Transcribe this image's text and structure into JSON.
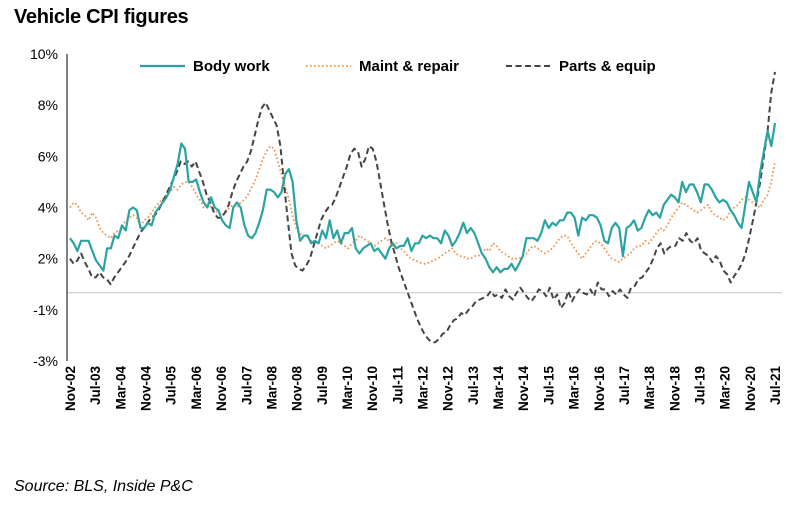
{
  "chart_data": {
    "type": "line",
    "title": "Vehicle CPI figures",
    "source": "Source: BLS, Inside P&C",
    "y_tick_labels": [
      "10%",
      "8%",
      "6%",
      "4%",
      "2%",
      "-1%",
      "-3%"
    ],
    "x_tick_labels": [
      "Nov-02",
      "Jul-03",
      "Mar-04",
      "Nov-04",
      "Jul-05",
      "Mar-06",
      "Nov-06",
      "Jul-07",
      "Mar-08",
      "Nov-08",
      "Jul-09",
      "Mar-10",
      "Nov-10",
      "Jul-11",
      "Mar-12",
      "Nov-12",
      "Jul-13",
      "Mar-14",
      "Nov-14",
      "Jul-15",
      "Mar-16",
      "Nov-16",
      "Jul-17",
      "Mar-18",
      "Nov-18",
      "Jul-19",
      "Mar-20",
      "Nov-20",
      "Jul-21"
    ],
    "legend_position": "top",
    "grid": false,
    "series": [
      {
        "name": "Body work",
        "color": "#2ba3a3",
        "style": "solid",
        "values": [
          2.8,
          2.6,
          2.3,
          2.7,
          2.7,
          2.7,
          2.3,
          1.9,
          1.6,
          1.3,
          2.4,
          2.4,
          2.9,
          2.8,
          3.3,
          3.1,
          3.9,
          4.0,
          3.9,
          3.2,
          3.2,
          3.4,
          3.3,
          3.8,
          4.0,
          4.2,
          4.4,
          4.7,
          5.2,
          5.7,
          6.5,
          6.3,
          5.0,
          5.0,
          5.1,
          4.6,
          4.2,
          4.0,
          4.4,
          4.0,
          3.9,
          3.5,
          3.3,
          3.2,
          4.0,
          4.2,
          4.0,
          3.3,
          2.9,
          2.8,
          3.0,
          3.4,
          3.9,
          4.7,
          4.7,
          4.6,
          4.4,
          4.6,
          5.3,
          5.5,
          5.0,
          3.5,
          2.7,
          2.9,
          2.9,
          2.6,
          2.7,
          2.6,
          3.1,
          2.8,
          3.5,
          2.8,
          3.1,
          2.6,
          3.0,
          3.0,
          3.2,
          2.4,
          2.2,
          2.4,
          2.5,
          2.6,
          2.3,
          2.4,
          2.2,
          2.0,
          2.4,
          2.6,
          2.4,
          2.5,
          2.5,
          2.8,
          2.3,
          2.6,
          2.6,
          2.9,
          2.8,
          2.9,
          2.8,
          2.8,
          2.6,
          3.1,
          2.9,
          2.5,
          2.7,
          3.0,
          3.4,
          3.0,
          3.2,
          3.0,
          2.6,
          2.2,
          2.0,
          1.5,
          1.2,
          1.5,
          1.2,
          1.4,
          1.4,
          1.7,
          1.3,
          1.7,
          2.1,
          2.8,
          2.8,
          2.8,
          2.7,
          3.0,
          3.5,
          3.2,
          3.4,
          3.3,
          3.5,
          3.5,
          3.8,
          3.8,
          3.6,
          2.9,
          3.6,
          3.5,
          3.7,
          3.7,
          3.6,
          3.3,
          2.7,
          2.6,
          3.2,
          3.4,
          3.2,
          2.1,
          3.2,
          3.3,
          3.5,
          3.1,
          3.2,
          3.6,
          3.9,
          3.7,
          3.8,
          3.6,
          4.1,
          4.3,
          4.5,
          4.4,
          4.2,
          5.0,
          4.6,
          4.9,
          4.9,
          4.6,
          4.2,
          4.9,
          4.9,
          4.7,
          4.4,
          4.2,
          4.3,
          4.2,
          3.9,
          3.7,
          3.4,
          3.2,
          4.1,
          5.0,
          4.6,
          4.2,
          5.4,
          6.2,
          7.0,
          6.4,
          7.3
        ]
      },
      {
        "name": "Maint & repair",
        "color": "#f0914a",
        "style": "dotted",
        "values": [
          4.0,
          4.2,
          4.1,
          3.8,
          3.7,
          3.5,
          3.8,
          3.6,
          3.2,
          3.0,
          2.9,
          2.8,
          3.0,
          3.1,
          3.2,
          3.5,
          3.6,
          3.7,
          3.6,
          3.3,
          3.5,
          3.6,
          3.8,
          4.0,
          4.2,
          4.3,
          4.5,
          4.6,
          4.8,
          4.7,
          4.9,
          5.0,
          5.0,
          4.8,
          4.5,
          4.3,
          4.0,
          4.2,
          4.0,
          3.9,
          3.8,
          3.7,
          3.8,
          4.0,
          4.1,
          4.0,
          4.2,
          4.3,
          4.5,
          4.8,
          5.1,
          5.5,
          5.9,
          6.2,
          6.4,
          6.3,
          5.8,
          5.3,
          4.8,
          4.3,
          3.7,
          3.2,
          3.0,
          2.8,
          2.9,
          2.7,
          2.6,
          2.6,
          2.5,
          2.4,
          2.5,
          2.6,
          2.7,
          2.6,
          2.5,
          2.4,
          2.6,
          2.7,
          2.9,
          2.8,
          2.7,
          2.6,
          2.5,
          2.6,
          2.7,
          2.8,
          2.7,
          2.5,
          2.6,
          2.4,
          2.3,
          2.1,
          2.0,
          1.9,
          1.8,
          1.7,
          1.7,
          1.8,
          1.9,
          2.0,
          2.1,
          2.2,
          2.3,
          2.4,
          2.2,
          2.1,
          2.1,
          2.0,
          2.0,
          2.1,
          2.1,
          2.2,
          2.4,
          2.3,
          2.6,
          2.5,
          2.3,
          2.2,
          2.1,
          2.0,
          2.0,
          2.0,
          2.1,
          2.2,
          2.4,
          2.5,
          2.4,
          2.3,
          2.2,
          2.3,
          2.4,
          2.6,
          2.8,
          2.9,
          2.9,
          2.6,
          2.4,
          2.2,
          2.0,
          2.2,
          2.4,
          2.6,
          2.7,
          2.6,
          2.4,
          2.2,
          2.0,
          1.9,
          1.8,
          2.0,
          2.1,
          2.2,
          2.4,
          2.5,
          2.5,
          2.7,
          2.6,
          2.8,
          3.0,
          3.2,
          3.1,
          3.3,
          3.6,
          3.8,
          4.0,
          4.2,
          4.1,
          4.0,
          3.9,
          3.8,
          3.9,
          4.0,
          4.1,
          3.8,
          3.7,
          3.6,
          3.5,
          3.6,
          3.9,
          4.0,
          4.1,
          4.3,
          4.4,
          4.3,
          4.2,
          4.1,
          4.0,
          4.3,
          4.5,
          5.0,
          5.8
        ]
      },
      {
        "name": "Parts & equip",
        "color": "#444444",
        "style": "dashed",
        "values": [
          2.0,
          1.7,
          1.9,
          2.2,
          1.8,
          1.4,
          0.9,
          0.9,
          1.2,
          0.9,
          0.8,
          0.5,
          0.9,
          1.2,
          1.5,
          1.8,
          2.1,
          2.4,
          2.7,
          3.0,
          3.2,
          3.4,
          3.6,
          3.7,
          3.9,
          4.2,
          4.5,
          4.8,
          5.1,
          5.4,
          5.8,
          5.7,
          5.8,
          5.6,
          5.8,
          5.4,
          5.0,
          4.5,
          4.2,
          3.8,
          3.6,
          3.6,
          3.8,
          4.1,
          4.6,
          5.0,
          5.3,
          5.6,
          5.8,
          6.2,
          6.8,
          7.4,
          7.9,
          8.1,
          7.8,
          7.5,
          7.2,
          6.4,
          4.9,
          3.5,
          2.2,
          1.6,
          1.4,
          1.3,
          1.6,
          2.0,
          2.5,
          3.0,
          3.5,
          3.8,
          4.0,
          4.1,
          4.4,
          4.8,
          5.2,
          5.6,
          6.1,
          6.3,
          6.2,
          5.6,
          5.9,
          6.4,
          6.3,
          5.8,
          5.0,
          4.2,
          3.4,
          2.7,
          2.2,
          1.5,
          0.9,
          0.3,
          -0.3,
          -0.9,
          -1.5,
          -2.0,
          -2.4,
          -2.7,
          -2.9,
          -2.9,
          -2.7,
          -2.4,
          -2.3,
          -1.9,
          -1.6,
          -1.5,
          -1.2,
          -1.3,
          -1.0,
          -0.8,
          -0.5,
          -0.4,
          -0.3,
          -0.2,
          0.1,
          -0.2,
          -0.1,
          -0.3,
          0.2,
          -0.2,
          -0.4,
          0.0,
          0.3,
          0.0,
          -0.3,
          -0.5,
          -0.2,
          0.2,
          0.1,
          -0.2,
          0.3,
          -0.4,
          -0.1,
          -0.9,
          -0.6,
          0.1,
          -0.5,
          -0.1,
          0.2,
          0.0,
          -0.1,
          0.2,
          -0.2,
          0.6,
          0.2,
          0.2,
          -0.2,
          0.1,
          -0.1,
          0.2,
          -0.1,
          -0.3,
          0.3,
          0.4,
          0.8,
          0.9,
          1.2,
          1.5,
          2.0,
          2.4,
          2.6,
          2.2,
          2.4,
          2.5,
          2.5,
          2.8,
          2.7,
          3.0,
          2.7,
          2.6,
          2.8,
          2.3,
          2.2,
          2.1,
          1.8,
          2.1,
          1.9,
          1.3,
          1.1,
          0.6,
          1.0,
          1.3,
          1.7,
          2.2,
          2.8,
          3.5,
          4.2,
          5.0,
          6.0,
          7.0,
          8.5,
          9.3
        ]
      }
    ]
  }
}
